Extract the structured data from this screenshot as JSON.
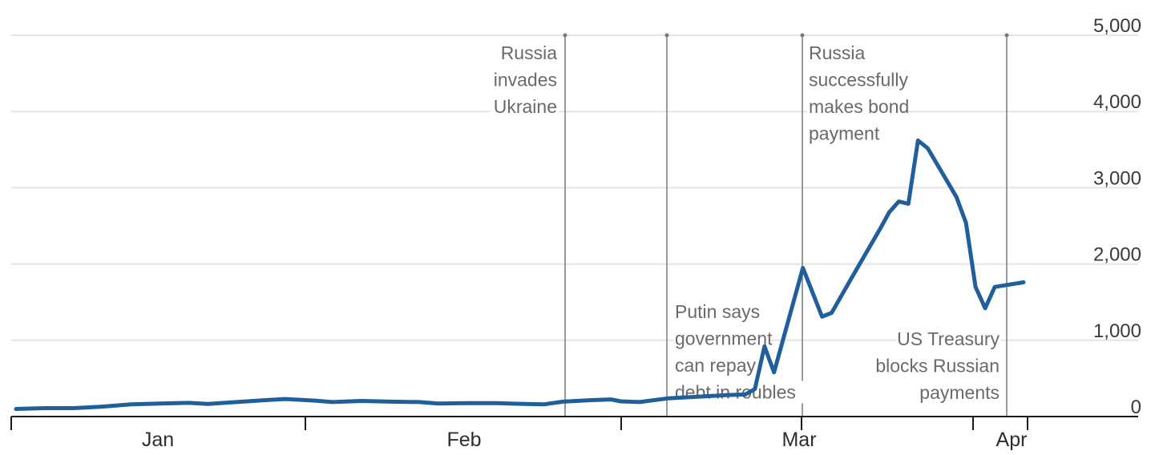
{
  "chart_data": {
    "type": "line",
    "title": "",
    "xlabel": "",
    "ylabel": "",
    "ylim": [
      0,
      5000
    ],
    "y_ticks": [
      0,
      1000,
      2000,
      3000,
      4000,
      5000
    ],
    "y_tick_labels": [
      "0",
      "1,000",
      "2,000",
      "3,000",
      "4,000",
      "5,000"
    ],
    "x_labels": [
      "Jan",
      "Feb",
      "Mar",
      "Apr"
    ],
    "x_domain": [
      "2021-12-28",
      "2022-04-12"
    ],
    "grid": true,
    "series": [
      {
        "color": "#215f9c",
        "points": [
          [
            "2021-12-28",
            100
          ],
          [
            "2021-12-31",
            110
          ],
          [
            "2022-01-03",
            110
          ],
          [
            "2022-01-06",
            130
          ],
          [
            "2022-01-09",
            160
          ],
          [
            "2022-01-12",
            170
          ],
          [
            "2022-01-15",
            180
          ],
          [
            "2022-01-17",
            165
          ],
          [
            "2022-01-20",
            190
          ],
          [
            "2022-01-23",
            215
          ],
          [
            "2022-01-25",
            230
          ],
          [
            "2022-01-28",
            210
          ],
          [
            "2022-01-30",
            190
          ],
          [
            "2022-02-02",
            205
          ],
          [
            "2022-02-05",
            195
          ],
          [
            "2022-02-08",
            190
          ],
          [
            "2022-02-10",
            170
          ],
          [
            "2022-02-13",
            175
          ],
          [
            "2022-02-16",
            175
          ],
          [
            "2022-02-19",
            165
          ],
          [
            "2022-02-21",
            160
          ],
          [
            "2022-02-23",
            195
          ],
          [
            "2022-02-26",
            215
          ],
          [
            "2022-02-28",
            225
          ],
          [
            "2022-03-01",
            200
          ],
          [
            "2022-03-03",
            190
          ],
          [
            "2022-03-06",
            240
          ],
          [
            "2022-03-09",
            260
          ],
          [
            "2022-03-12",
            280
          ],
          [
            "2022-03-14",
            290
          ],
          [
            "2022-03-15",
            360
          ],
          [
            "2022-03-16",
            920
          ],
          [
            "2022-03-17",
            580
          ],
          [
            "2022-03-20",
            1950
          ],
          [
            "2022-03-22",
            1310
          ],
          [
            "2022-03-23",
            1360
          ],
          [
            "2022-03-25",
            1800
          ],
          [
            "2022-03-28",
            2450
          ],
          [
            "2022-03-29",
            2680
          ],
          [
            "2022-03-30",
            2820
          ],
          [
            "2022-03-31",
            2790
          ],
          [
            "2022-04-01",
            3620
          ],
          [
            "2022-04-02",
            3520
          ],
          [
            "2022-04-05",
            2880
          ],
          [
            "2022-04-06",
            2540
          ],
          [
            "2022-04-07",
            1700
          ],
          [
            "2022-04-08",
            1420
          ],
          [
            "2022-04-09",
            1700
          ],
          [
            "2022-04-12",
            1760
          ]
        ]
      }
    ],
    "annotations": [
      {
        "lines": [
          "Russia",
          "invades",
          "Ukraine"
        ]
      },
      {
        "lines": [
          "Putin says",
          "government",
          "can repay",
          "debt in roubles"
        ]
      },
      {
        "lines": [
          "Russia",
          "successfully",
          "makes bond",
          "payment"
        ]
      },
      {
        "lines": [
          "US Treasury",
          "blocks Russian",
          "payments"
        ]
      }
    ]
  }
}
